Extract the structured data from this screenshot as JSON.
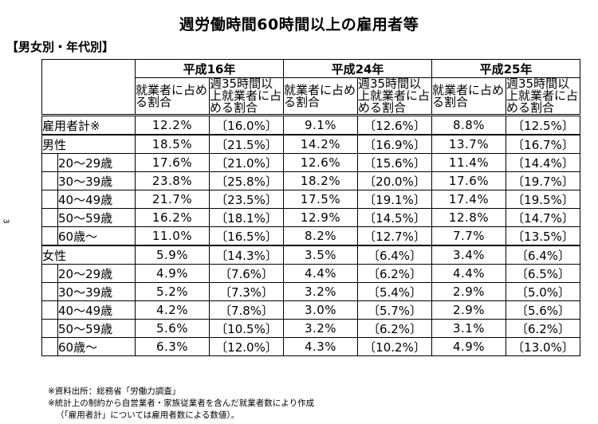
{
  "title": "週労働時間60時間以上の雇用者等",
  "subtitle": "【男女別・年代別】",
  "page_number": "3",
  "periods": [
    "平成16年",
    "平成24年",
    "平成25年"
  ],
  "col_headers": {
    "share": "就業者に占める割合",
    "share35": "週35時間以上就業者に占める割合"
  },
  "rows": {
    "total": {
      "label": "雇用者計※",
      "v": [
        "12.2%",
        "〔16.0%〕",
        "9.1%",
        "〔12.6%〕",
        "8.8%",
        "〔12.5%〕"
      ]
    },
    "male": {
      "label": "男性",
      "v": [
        "18.5%",
        "〔21.5%〕",
        "14.2%",
        "〔16.9%〕",
        "13.7%",
        "〔16.7%〕"
      ]
    },
    "m20": {
      "label": "20～29歳",
      "v": [
        "17.6%",
        "〔21.0%〕",
        "12.6%",
        "〔15.6%〕",
        "11.4%",
        "〔14.4%〕"
      ]
    },
    "m30": {
      "label": "30～39歳",
      "v": [
        "23.8%",
        "〔25.8%〕",
        "18.2%",
        "〔20.0%〕",
        "17.6%",
        "〔19.7%〕"
      ]
    },
    "m40": {
      "label": "40～49歳",
      "v": [
        "21.7%",
        "〔23.5%〕",
        "17.5%",
        "〔19.1%〕",
        "17.4%",
        "〔19.5%〕"
      ]
    },
    "m50": {
      "label": "50～59歳",
      "v": [
        "16.2%",
        "〔18.1%〕",
        "12.9%",
        "〔14.5%〕",
        "12.8%",
        "〔14.7%〕"
      ]
    },
    "m60": {
      "label": "60歳～",
      "v": [
        "11.0%",
        "〔16.5%〕",
        "8.2%",
        "〔12.7%〕",
        "7.7%",
        "〔13.5%〕"
      ]
    },
    "female": {
      "label": "女性",
      "v": [
        "5.9%",
        "〔14.3%〕",
        "3.5%",
        "〔6.4%〕",
        "3.4%",
        "〔6.4%〕"
      ]
    },
    "f20": {
      "label": "20～29歳",
      "v": [
        "4.9%",
        "〔7.6%〕",
        "4.4%",
        "〔6.2%〕",
        "4.4%",
        "〔6.5%〕"
      ]
    },
    "f30": {
      "label": "30～39歳",
      "v": [
        "5.2%",
        "〔7.3%〕",
        "3.2%",
        "〔5.4%〕",
        "2.9%",
        "〔5.0%〕"
      ]
    },
    "f40": {
      "label": "40～49歳",
      "v": [
        "4.2%",
        "〔7.8%〕",
        "3.0%",
        "〔5.7%〕",
        "2.9%",
        "〔5.6%〕"
      ]
    },
    "f50": {
      "label": "50～59歳",
      "v": [
        "5.6%",
        "〔10.5%〕",
        "3.2%",
        "〔6.2%〕",
        "3.1%",
        "〔6.2%〕"
      ]
    },
    "f60": {
      "label": "60歳～",
      "v": [
        "6.3%",
        "〔12.0%〕",
        "4.3%",
        "〔10.2%〕",
        "4.9%",
        "〔13.0%〕"
      ]
    }
  },
  "notes": [
    "※資料出所：総務省「労働力調査」",
    "※統計上の制約から自営業者・家族従業者を含んだ就業者数により作成",
    "（「雇用者計」については雇用者数による数値）。"
  ]
}
